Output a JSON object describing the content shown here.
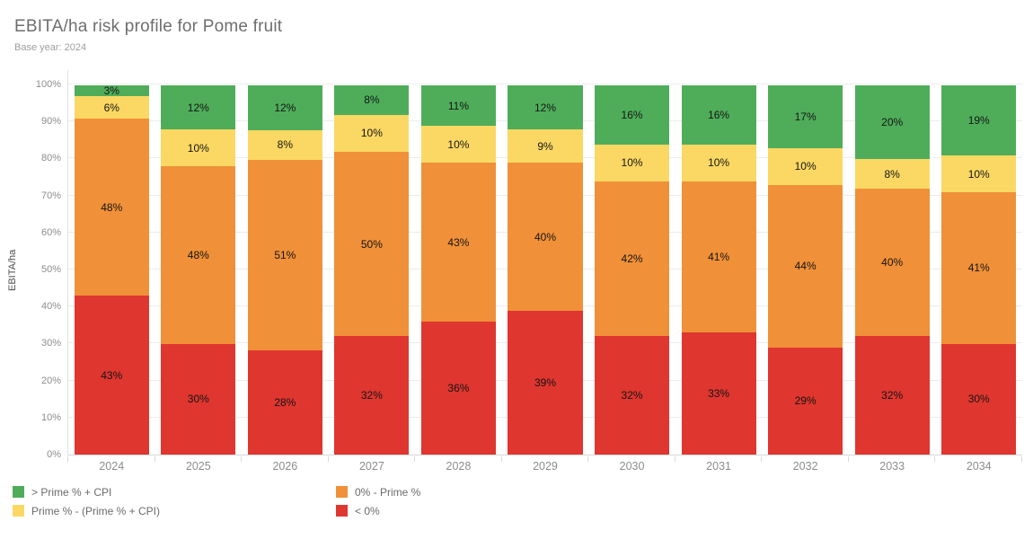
{
  "title": "EBITA/ha risk profile for Pome fruit",
  "subtitle": "Base year: 2024",
  "y_axis_label": "EBITA/ha",
  "colors": {
    "green": "#4fad5a",
    "yellow": "#fbd863",
    "orange": "#f09038",
    "red": "#df362f"
  },
  "chart_data": {
    "type": "bar",
    "stacked": true,
    "title": "EBITA/ha risk profile for Pome fruit",
    "subtitle": "Base year: 2024",
    "xlabel": "",
    "ylabel": "EBITA/ha",
    "ylim": [
      0,
      100
    ],
    "y_tick_labels": [
      "0%",
      "10%",
      "20%",
      "30%",
      "40%",
      "50%",
      "60%",
      "70%",
      "80%",
      "90%",
      "100%"
    ],
    "grid": true,
    "legend_position": "bottom",
    "categories": [
      "2024",
      "2025",
      "2026",
      "2027",
      "2028",
      "2029",
      "2030",
      "2031",
      "2032",
      "2033",
      "2034"
    ],
    "series": [
      {
        "name": "< 0%",
        "color": "#df362f",
        "values": [
          43,
          30,
          28,
          32,
          36,
          39,
          32,
          33,
          29,
          32,
          30
        ]
      },
      {
        "name": "0% - Prime %",
        "color": "#f09038",
        "values": [
          48,
          48,
          51,
          50,
          43,
          40,
          42,
          41,
          44,
          40,
          41
        ]
      },
      {
        "name": "Prime % - (Prime % + CPI)",
        "color": "#fbd863",
        "values": [
          6,
          10,
          8,
          10,
          10,
          9,
          10,
          10,
          10,
          8,
          10
        ]
      },
      {
        "name": "> Prime % + CPI",
        "color": "#4fad5a",
        "values": [
          3,
          12,
          12,
          8,
          11,
          12,
          16,
          16,
          17,
          20,
          19
        ]
      }
    ],
    "bar_label_format": "{value}%"
  },
  "legend": {
    "items": [
      {
        "label": "> Prime % + CPI",
        "color": "#4fad5a"
      },
      {
        "label": "0% - Prime %",
        "color": "#f09038"
      },
      {
        "label": "Prime % - (Prime % + CPI)",
        "color": "#fbd863"
      },
      {
        "label": "< 0%",
        "color": "#df362f"
      }
    ]
  }
}
